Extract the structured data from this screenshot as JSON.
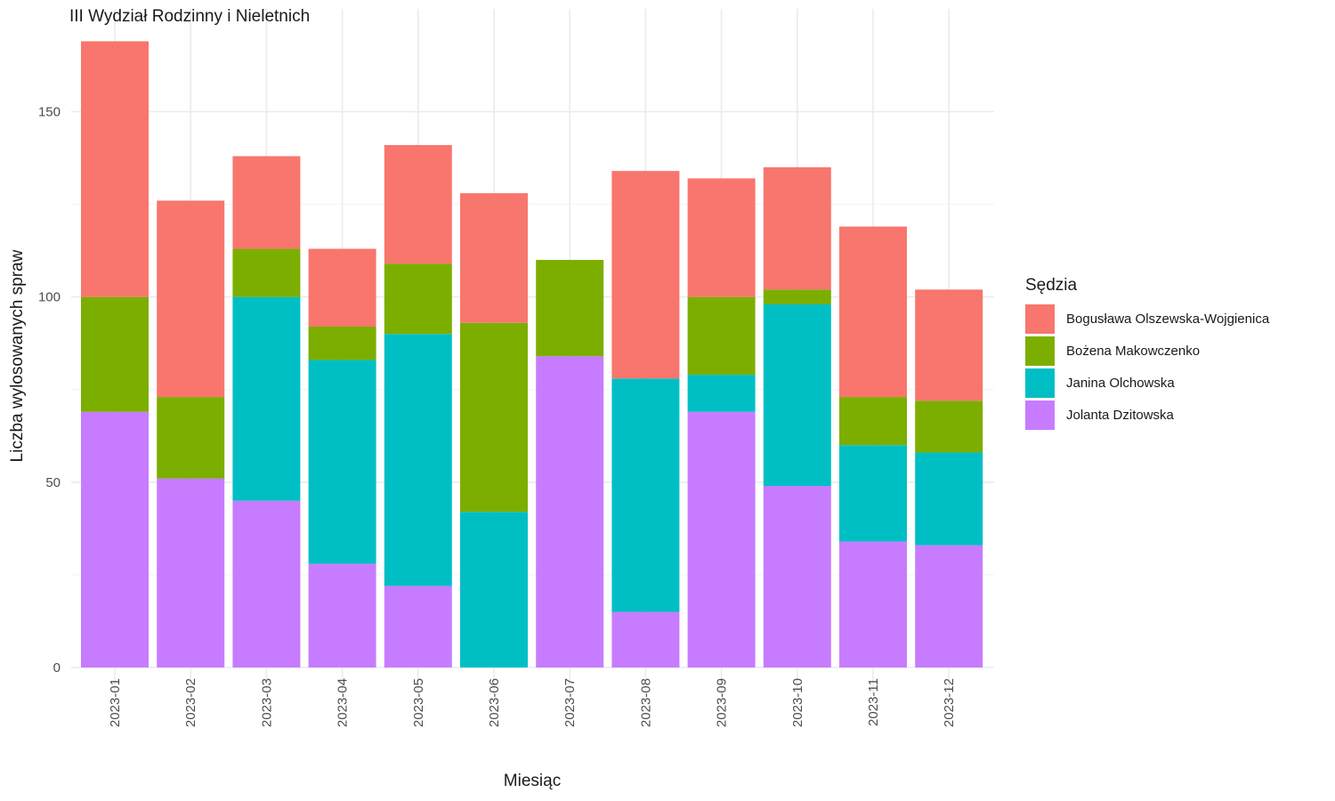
{
  "chart_data": {
    "type": "bar",
    "stacked": true,
    "title": "III Wydział Rodzinny i Nieletnich",
    "xlabel": "Miesiąc",
    "ylabel": "Liczba wylosowanych spraw",
    "ylim": [
      0,
      170
    ],
    "yticks": [
      0,
      50,
      100,
      150
    ],
    "grid": true,
    "legend_title": "Sędzia",
    "legend_position": "right",
    "categories": [
      "2023-01",
      "2023-02",
      "2023-03",
      "2023-04",
      "2023-05",
      "2023-06",
      "2023-07",
      "2023-08",
      "2023-09",
      "2023-10",
      "2023-11",
      "2023-12"
    ],
    "series": [
      {
        "name": "Jolanta Dzitowska",
        "color": "#C77CFF",
        "values": [
          69,
          51,
          45,
          28,
          22,
          0,
          84,
          15,
          69,
          49,
          34,
          33
        ]
      },
      {
        "name": "Janina Olchowska",
        "color": "#00BFC4",
        "values": [
          0,
          0,
          55,
          55,
          68,
          42,
          0,
          63,
          10,
          49,
          26,
          25
        ]
      },
      {
        "name": "Bożena Makowczenko",
        "color": "#7CAE00",
        "values": [
          31,
          22,
          13,
          9,
          19,
          51,
          26,
          0,
          21,
          4,
          13,
          14
        ]
      },
      {
        "name": "Bogusława Olszewska-Wojgienica",
        "color": "#F8766D",
        "values": [
          69,
          53,
          25,
          21,
          32,
          35,
          0,
          56,
          32,
          33,
          46,
          30
        ]
      }
    ],
    "legend_order": [
      "Bogusława Olszewska-Wojgienica",
      "Bożena Makowczenko",
      "Janina Olchowska",
      "Jolanta Dzitowska"
    ]
  }
}
